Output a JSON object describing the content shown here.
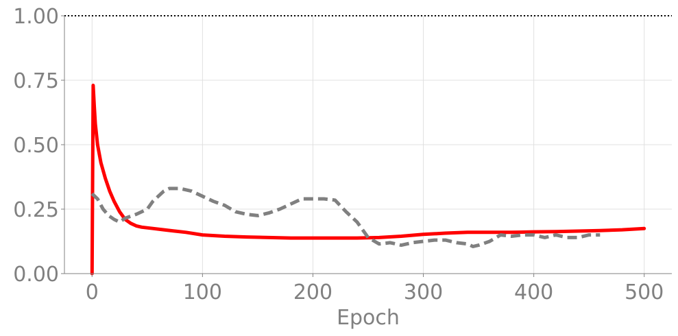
{
  "chart_data": {
    "type": "line",
    "title": "",
    "xlabel": "Epoch",
    "ylabel": "",
    "xlim": [
      -25,
      525
    ],
    "ylim": [
      0,
      1
    ],
    "xticks": [
      0,
      100,
      200,
      300,
      400,
      500
    ],
    "yticks": [
      0.0,
      0.25,
      0.5,
      0.75,
      1.0
    ],
    "xtick_labels": [
      "0",
      "100",
      "200",
      "300",
      "400",
      "500"
    ],
    "ytick_labels": [
      "0.00",
      "0.25",
      "0.50",
      "0.75",
      "1.00"
    ],
    "grid": true,
    "reference_line": {
      "y": 1.0,
      "style": "dotted",
      "color": "#000000"
    },
    "series": [
      {
        "style": "solid",
        "color": "#ff0000",
        "x": [
          0,
          1,
          2,
          3,
          5,
          8,
          12,
          16,
          20,
          25,
          30,
          35,
          40,
          45,
          55,
          65,
          75,
          85,
          100,
          120,
          140,
          160,
          180,
          200,
          220,
          240,
          260,
          280,
          300,
          320,
          340,
          360,
          380,
          400,
          420,
          440,
          460,
          480,
          500
        ],
        "y": [
          0.0,
          0.73,
          0.65,
          0.58,
          0.5,
          0.43,
          0.37,
          0.32,
          0.28,
          0.24,
          0.21,
          0.195,
          0.185,
          0.18,
          0.175,
          0.17,
          0.165,
          0.16,
          0.15,
          0.145,
          0.142,
          0.14,
          0.138,
          0.138,
          0.138,
          0.138,
          0.14,
          0.145,
          0.152,
          0.157,
          0.16,
          0.16,
          0.16,
          0.162,
          0.163,
          0.165,
          0.167,
          0.17,
          0.175
        ]
      },
      {
        "style": "dashed",
        "color": "#808080",
        "x": [
          0,
          5,
          10,
          15,
          20,
          25,
          30,
          40,
          50,
          55,
          60,
          65,
          70,
          80,
          90,
          100,
          110,
          120,
          130,
          140,
          150,
          160,
          170,
          180,
          190,
          200,
          210,
          220,
          230,
          240,
          250,
          260,
          270,
          280,
          290,
          300,
          310,
          320,
          330,
          340,
          345,
          350,
          360,
          370,
          380,
          390,
          400,
          410,
          420,
          430,
          440,
          450,
          460
        ],
        "y": [
          0.31,
          0.29,
          0.25,
          0.225,
          0.21,
          0.2,
          0.215,
          0.23,
          0.25,
          0.28,
          0.3,
          0.32,
          0.33,
          0.33,
          0.32,
          0.3,
          0.28,
          0.265,
          0.24,
          0.23,
          0.225,
          0.235,
          0.25,
          0.27,
          0.29,
          0.29,
          0.29,
          0.285,
          0.24,
          0.2,
          0.14,
          0.115,
          0.12,
          0.11,
          0.12,
          0.125,
          0.13,
          0.13,
          0.12,
          0.115,
          0.105,
          0.11,
          0.125,
          0.15,
          0.145,
          0.15,
          0.15,
          0.14,
          0.15,
          0.14,
          0.14,
          0.15,
          0.15
        ]
      }
    ]
  }
}
